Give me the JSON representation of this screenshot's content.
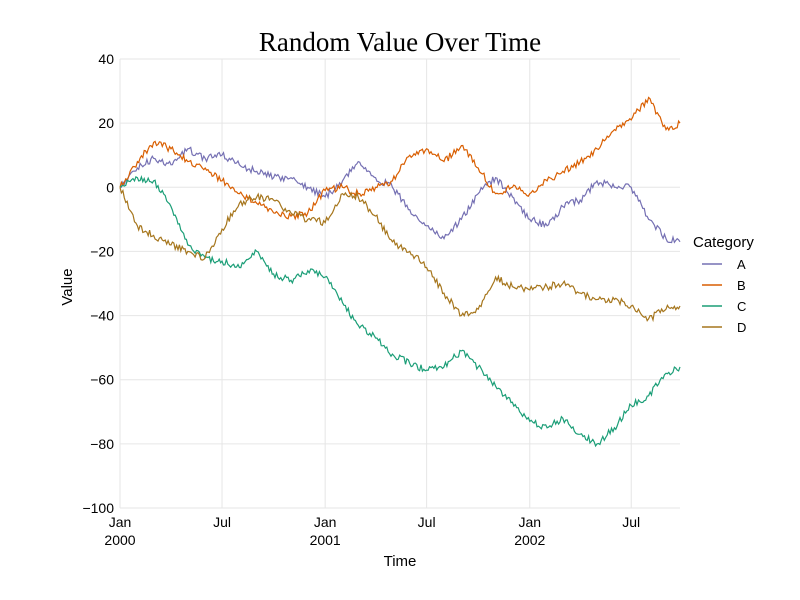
{
  "chart_data": {
    "type": "line",
    "title": "Random Value Over Time",
    "xlabel": "Time",
    "ylabel": "Value",
    "xlim": [
      "2000-01-01",
      "2002-09-26"
    ],
    "ylim": [
      -100,
      40
    ],
    "grid": true,
    "legend": {
      "title": "Category",
      "placement": "right"
    },
    "x_ticks": [
      {
        "date": "2000-01-01",
        "label": "Jan",
        "sublabel": "2000"
      },
      {
        "date": "2000-07-01",
        "label": "Jul",
        "sublabel": ""
      },
      {
        "date": "2001-01-01",
        "label": "Jan",
        "sublabel": "2001"
      },
      {
        "date": "2001-07-01",
        "label": "Jul",
        "sublabel": ""
      },
      {
        "date": "2002-01-01",
        "label": "Jan",
        "sublabel": "2002"
      },
      {
        "date": "2002-07-01",
        "label": "Jul",
        "sublabel": ""
      }
    ],
    "y_ticks": [
      40,
      20,
      0,
      -20,
      -40,
      -60,
      -80,
      -100
    ],
    "y_tick_labels": [
      "40",
      "20",
      "0",
      "−20",
      "−40",
      "−60",
      "−80",
      "−100"
    ],
    "series": [
      {
        "name": "A",
        "color": "#7570b3",
        "points": [
          [
            "2000-01-01",
            0
          ],
          [
            "2000-02-01",
            6
          ],
          [
            "2000-03-01",
            9
          ],
          [
            "2000-04-01",
            7
          ],
          [
            "2000-05-01",
            12
          ],
          [
            "2000-06-01",
            9
          ],
          [
            "2000-07-01",
            10
          ],
          [
            "2000-08-01",
            7
          ],
          [
            "2000-09-01",
            5
          ],
          [
            "2000-10-01",
            3
          ],
          [
            "2000-11-01",
            3
          ],
          [
            "2000-12-01",
            0
          ],
          [
            "2001-01-01",
            -3
          ],
          [
            "2001-02-01",
            2
          ],
          [
            "2001-03-01",
            8
          ],
          [
            "2001-04-01",
            3
          ],
          [
            "2001-05-01",
            0
          ],
          [
            "2001-06-01",
            -7
          ],
          [
            "2001-07-01",
            -12
          ],
          [
            "2001-08-01",
            -16
          ],
          [
            "2001-09-01",
            -10
          ],
          [
            "2001-10-01",
            -2
          ],
          [
            "2001-11-01",
            3
          ],
          [
            "2001-12-01",
            -3
          ],
          [
            "2002-01-01",
            -10
          ],
          [
            "2002-02-01",
            -12
          ],
          [
            "2002-03-01",
            -6
          ],
          [
            "2002-04-01",
            -4
          ],
          [
            "2002-05-01",
            2
          ],
          [
            "2002-06-01",
            0
          ],
          [
            "2002-07-01",
            0
          ],
          [
            "2002-08-01",
            -10
          ],
          [
            "2002-09-01",
            -16
          ],
          [
            "2002-09-26",
            -17
          ]
        ]
      },
      {
        "name": "B",
        "color": "#d95f02",
        "points": [
          [
            "2000-01-01",
            0
          ],
          [
            "2000-02-01",
            8
          ],
          [
            "2000-03-01",
            14
          ],
          [
            "2000-04-01",
            12
          ],
          [
            "2000-05-01",
            8
          ],
          [
            "2000-06-01",
            6
          ],
          [
            "2000-07-01",
            2
          ],
          [
            "2000-08-01",
            -2
          ],
          [
            "2000-09-01",
            -5
          ],
          [
            "2000-10-01",
            -8
          ],
          [
            "2000-11-01",
            -9
          ],
          [
            "2000-12-01",
            -8
          ],
          [
            "2001-01-01",
            -1
          ],
          [
            "2001-02-01",
            0
          ],
          [
            "2001-03-01",
            -2
          ],
          [
            "2001-04-01",
            0
          ],
          [
            "2001-05-01",
            2
          ],
          [
            "2001-06-01",
            10
          ],
          [
            "2001-07-01",
            12
          ],
          [
            "2001-08-01",
            8
          ],
          [
            "2001-09-01",
            13
          ],
          [
            "2001-10-01",
            6
          ],
          [
            "2001-11-01",
            -2
          ],
          [
            "2001-12-01",
            0
          ],
          [
            "2002-01-01",
            -2
          ],
          [
            "2002-02-01",
            2
          ],
          [
            "2002-03-01",
            5
          ],
          [
            "2002-04-01",
            8
          ],
          [
            "2002-05-01",
            12
          ],
          [
            "2002-06-01",
            18
          ],
          [
            "2002-07-01",
            21
          ],
          [
            "2002-08-01",
            28
          ],
          [
            "2002-09-01",
            18
          ],
          [
            "2002-09-26",
            20
          ]
        ]
      },
      {
        "name": "C",
        "color": "#1b9e77",
        "points": [
          [
            "2000-01-01",
            0
          ],
          [
            "2000-02-01",
            3
          ],
          [
            "2000-03-01",
            2
          ],
          [
            "2000-04-01",
            -6
          ],
          [
            "2000-05-01",
            -18
          ],
          [
            "2000-06-01",
            -22
          ],
          [
            "2000-07-01",
            -23
          ],
          [
            "2000-08-01",
            -25
          ],
          [
            "2000-09-01",
            -20
          ],
          [
            "2000-10-01",
            -27
          ],
          [
            "2000-11-01",
            -29
          ],
          [
            "2000-12-01",
            -26
          ],
          [
            "2001-01-01",
            -28
          ],
          [
            "2001-02-01",
            -36
          ],
          [
            "2001-03-01",
            -43
          ],
          [
            "2001-04-01",
            -47
          ],
          [
            "2001-05-01",
            -52
          ],
          [
            "2001-06-01",
            -55
          ],
          [
            "2001-07-01",
            -57
          ],
          [
            "2001-08-01",
            -56
          ],
          [
            "2001-09-01",
            -51
          ],
          [
            "2001-10-01",
            -56
          ],
          [
            "2001-11-01",
            -62
          ],
          [
            "2001-12-01",
            -67
          ],
          [
            "2002-01-01",
            -73
          ],
          [
            "2002-02-01",
            -75
          ],
          [
            "2002-03-01",
            -72
          ],
          [
            "2002-04-01",
            -77
          ],
          [
            "2002-05-01",
            -80
          ],
          [
            "2002-06-01",
            -75
          ],
          [
            "2002-07-01",
            -68
          ],
          [
            "2002-08-01",
            -65
          ],
          [
            "2002-09-01",
            -58
          ],
          [
            "2002-09-26",
            -56
          ]
        ]
      },
      {
        "name": "D",
        "color": "#a6761d",
        "points": [
          [
            "2000-01-01",
            0
          ],
          [
            "2000-02-01",
            -12
          ],
          [
            "2000-03-01",
            -15
          ],
          [
            "2000-04-01",
            -18
          ],
          [
            "2000-05-01",
            -20
          ],
          [
            "2000-06-01",
            -22
          ],
          [
            "2000-07-01",
            -13
          ],
          [
            "2000-08-01",
            -5
          ],
          [
            "2000-09-01",
            -3
          ],
          [
            "2000-10-01",
            -4
          ],
          [
            "2000-11-01",
            -8
          ],
          [
            "2000-12-01",
            -10
          ],
          [
            "2001-01-01",
            -11
          ],
          [
            "2001-02-01",
            -2
          ],
          [
            "2001-03-01",
            -3
          ],
          [
            "2001-04-01",
            -9
          ],
          [
            "2001-05-01",
            -17
          ],
          [
            "2001-06-01",
            -20
          ],
          [
            "2001-07-01",
            -25
          ],
          [
            "2001-08-01",
            -33
          ],
          [
            "2001-09-01",
            -40
          ],
          [
            "2001-10-01",
            -38
          ],
          [
            "2001-11-01",
            -28
          ],
          [
            "2001-12-01",
            -31
          ],
          [
            "2002-01-01",
            -32
          ],
          [
            "2002-02-01",
            -31
          ],
          [
            "2002-03-01",
            -30
          ],
          [
            "2002-04-01",
            -33
          ],
          [
            "2002-05-01",
            -35
          ],
          [
            "2002-06-01",
            -35
          ],
          [
            "2002-07-01",
            -37
          ],
          [
            "2002-08-01",
            -41
          ],
          [
            "2002-09-01",
            -38
          ],
          [
            "2002-09-26",
            -37
          ]
        ]
      }
    ]
  }
}
